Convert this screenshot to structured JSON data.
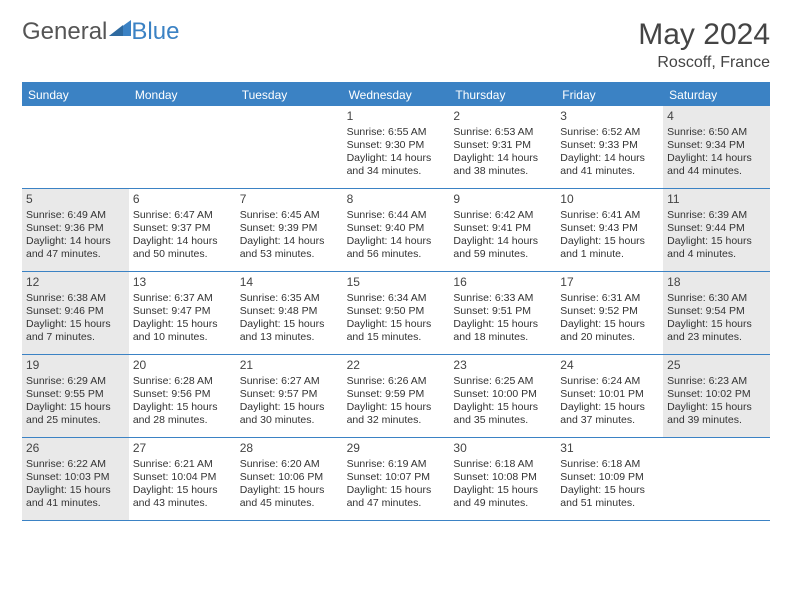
{
  "brand": {
    "part1": "General",
    "part2": "Blue"
  },
  "title": "May 2024",
  "location": "Roscoff, France",
  "colors": {
    "accent": "#3b82c4",
    "shade": "#e9e9e9",
    "text": "#333333",
    "header_text": "#ffffff",
    "background": "#ffffff"
  },
  "day_names": [
    "Sunday",
    "Monday",
    "Tuesday",
    "Wednesday",
    "Thursday",
    "Friday",
    "Saturday"
  ],
  "weeks": [
    [
      {
        "blank": true
      },
      {
        "blank": true
      },
      {
        "blank": true
      },
      {
        "day": "1",
        "shade": false,
        "sunrise": "Sunrise: 6:55 AM",
        "sunset": "Sunset: 9:30 PM",
        "daylight": "Daylight: 14 hours and 34 minutes."
      },
      {
        "day": "2",
        "shade": false,
        "sunrise": "Sunrise: 6:53 AM",
        "sunset": "Sunset: 9:31 PM",
        "daylight": "Daylight: 14 hours and 38 minutes."
      },
      {
        "day": "3",
        "shade": false,
        "sunrise": "Sunrise: 6:52 AM",
        "sunset": "Sunset: 9:33 PM",
        "daylight": "Daylight: 14 hours and 41 minutes."
      },
      {
        "day": "4",
        "shade": true,
        "sunrise": "Sunrise: 6:50 AM",
        "sunset": "Sunset: 9:34 PM",
        "daylight": "Daylight: 14 hours and 44 minutes."
      }
    ],
    [
      {
        "day": "5",
        "shade": true,
        "sunrise": "Sunrise: 6:49 AM",
        "sunset": "Sunset: 9:36 PM",
        "daylight": "Daylight: 14 hours and 47 minutes."
      },
      {
        "day": "6",
        "shade": false,
        "sunrise": "Sunrise: 6:47 AM",
        "sunset": "Sunset: 9:37 PM",
        "daylight": "Daylight: 14 hours and 50 minutes."
      },
      {
        "day": "7",
        "shade": false,
        "sunrise": "Sunrise: 6:45 AM",
        "sunset": "Sunset: 9:39 PM",
        "daylight": "Daylight: 14 hours and 53 minutes."
      },
      {
        "day": "8",
        "shade": false,
        "sunrise": "Sunrise: 6:44 AM",
        "sunset": "Sunset: 9:40 PM",
        "daylight": "Daylight: 14 hours and 56 minutes."
      },
      {
        "day": "9",
        "shade": false,
        "sunrise": "Sunrise: 6:42 AM",
        "sunset": "Sunset: 9:41 PM",
        "daylight": "Daylight: 14 hours and 59 minutes."
      },
      {
        "day": "10",
        "shade": false,
        "sunrise": "Sunrise: 6:41 AM",
        "sunset": "Sunset: 9:43 PM",
        "daylight": "Daylight: 15 hours and 1 minute."
      },
      {
        "day": "11",
        "shade": true,
        "sunrise": "Sunrise: 6:39 AM",
        "sunset": "Sunset: 9:44 PM",
        "daylight": "Daylight: 15 hours and 4 minutes."
      }
    ],
    [
      {
        "day": "12",
        "shade": true,
        "sunrise": "Sunrise: 6:38 AM",
        "sunset": "Sunset: 9:46 PM",
        "daylight": "Daylight: 15 hours and 7 minutes."
      },
      {
        "day": "13",
        "shade": false,
        "sunrise": "Sunrise: 6:37 AM",
        "sunset": "Sunset: 9:47 PM",
        "daylight": "Daylight: 15 hours and 10 minutes."
      },
      {
        "day": "14",
        "shade": false,
        "sunrise": "Sunrise: 6:35 AM",
        "sunset": "Sunset: 9:48 PM",
        "daylight": "Daylight: 15 hours and 13 minutes."
      },
      {
        "day": "15",
        "shade": false,
        "sunrise": "Sunrise: 6:34 AM",
        "sunset": "Sunset: 9:50 PM",
        "daylight": "Daylight: 15 hours and 15 minutes."
      },
      {
        "day": "16",
        "shade": false,
        "sunrise": "Sunrise: 6:33 AM",
        "sunset": "Sunset: 9:51 PM",
        "daylight": "Daylight: 15 hours and 18 minutes."
      },
      {
        "day": "17",
        "shade": false,
        "sunrise": "Sunrise: 6:31 AM",
        "sunset": "Sunset: 9:52 PM",
        "daylight": "Daylight: 15 hours and 20 minutes."
      },
      {
        "day": "18",
        "shade": true,
        "sunrise": "Sunrise: 6:30 AM",
        "sunset": "Sunset: 9:54 PM",
        "daylight": "Daylight: 15 hours and 23 minutes."
      }
    ],
    [
      {
        "day": "19",
        "shade": true,
        "sunrise": "Sunrise: 6:29 AM",
        "sunset": "Sunset: 9:55 PM",
        "daylight": "Daylight: 15 hours and 25 minutes."
      },
      {
        "day": "20",
        "shade": false,
        "sunrise": "Sunrise: 6:28 AM",
        "sunset": "Sunset: 9:56 PM",
        "daylight": "Daylight: 15 hours and 28 minutes."
      },
      {
        "day": "21",
        "shade": false,
        "sunrise": "Sunrise: 6:27 AM",
        "sunset": "Sunset: 9:57 PM",
        "daylight": "Daylight: 15 hours and 30 minutes."
      },
      {
        "day": "22",
        "shade": false,
        "sunrise": "Sunrise: 6:26 AM",
        "sunset": "Sunset: 9:59 PM",
        "daylight": "Daylight: 15 hours and 32 minutes."
      },
      {
        "day": "23",
        "shade": false,
        "sunrise": "Sunrise: 6:25 AM",
        "sunset": "Sunset: 10:00 PM",
        "daylight": "Daylight: 15 hours and 35 minutes."
      },
      {
        "day": "24",
        "shade": false,
        "sunrise": "Sunrise: 6:24 AM",
        "sunset": "Sunset: 10:01 PM",
        "daylight": "Daylight: 15 hours and 37 minutes."
      },
      {
        "day": "25",
        "shade": true,
        "sunrise": "Sunrise: 6:23 AM",
        "sunset": "Sunset: 10:02 PM",
        "daylight": "Daylight: 15 hours and 39 minutes."
      }
    ],
    [
      {
        "day": "26",
        "shade": true,
        "sunrise": "Sunrise: 6:22 AM",
        "sunset": "Sunset: 10:03 PM",
        "daylight": "Daylight: 15 hours and 41 minutes."
      },
      {
        "day": "27",
        "shade": false,
        "sunrise": "Sunrise: 6:21 AM",
        "sunset": "Sunset: 10:04 PM",
        "daylight": "Daylight: 15 hours and 43 minutes."
      },
      {
        "day": "28",
        "shade": false,
        "sunrise": "Sunrise: 6:20 AM",
        "sunset": "Sunset: 10:06 PM",
        "daylight": "Daylight: 15 hours and 45 minutes."
      },
      {
        "day": "29",
        "shade": false,
        "sunrise": "Sunrise: 6:19 AM",
        "sunset": "Sunset: 10:07 PM",
        "daylight": "Daylight: 15 hours and 47 minutes."
      },
      {
        "day": "30",
        "shade": false,
        "sunrise": "Sunrise: 6:18 AM",
        "sunset": "Sunset: 10:08 PM",
        "daylight": "Daylight: 15 hours and 49 minutes."
      },
      {
        "day": "31",
        "shade": false,
        "sunrise": "Sunrise: 6:18 AM",
        "sunset": "Sunset: 10:09 PM",
        "daylight": "Daylight: 15 hours and 51 minutes."
      },
      {
        "blank": true
      }
    ]
  ]
}
